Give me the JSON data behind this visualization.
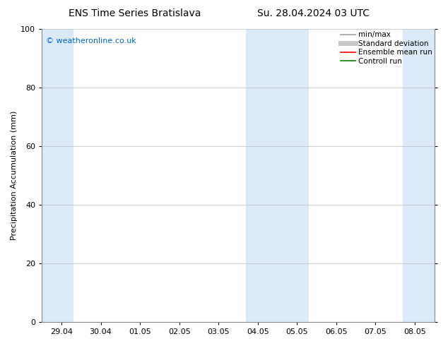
{
  "title_left": "ENS Time Series Bratislava",
  "title_right": "Su. 28.04.2024 03 UTC",
  "ylabel": "Precipitation Accumulation (mm)",
  "watermark": "© weatheronline.co.uk",
  "watermark_color": "#0066cc",
  "ylim": [
    0,
    100
  ],
  "yticks": [
    0,
    20,
    40,
    60,
    80,
    100
  ],
  "xtick_labels": [
    "29.04",
    "30.04",
    "01.05",
    "02.05",
    "03.05",
    "04.05",
    "05.05",
    "06.05",
    "07.05",
    "08.05"
  ],
  "shaded_bands": [
    {
      "xmin": -0.5,
      "xmax": 0.3
    },
    {
      "xmin": 4.7,
      "xmax": 6.3
    },
    {
      "xmin": 8.7,
      "xmax": 9.5
    }
  ],
  "shaded_color": "#daeaf8",
  "legend_entries": [
    {
      "label": "min/max",
      "color": "#b0b0b0",
      "linewidth": 1.5,
      "linestyle": "-"
    },
    {
      "label": "Standard deviation",
      "color": "#c8c8c8",
      "linewidth": 5,
      "linestyle": "-"
    },
    {
      "label": "Ensemble mean run",
      "color": "#ff0000",
      "linewidth": 1.2,
      "linestyle": "-"
    },
    {
      "label": "Controll run",
      "color": "#008000",
      "linewidth": 1.2,
      "linestyle": "-"
    }
  ],
  "background_color": "#ffffff",
  "plot_bg_color": "#ffffff",
  "grid_color": "#bbbbbb",
  "title_fontsize": 10,
  "tick_fontsize": 8,
  "ylabel_fontsize": 8,
  "legend_fontsize": 7.5
}
